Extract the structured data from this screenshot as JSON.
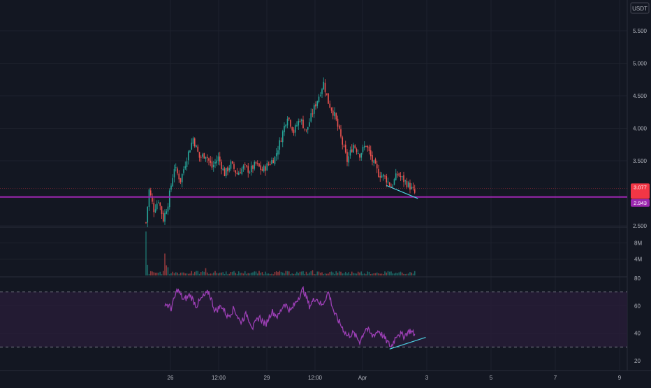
{
  "colors": {
    "background": "#131722",
    "grid": "#1e222d",
    "axis_text": "#b2b5be",
    "up": "#26a69a",
    "down": "#ef5350",
    "support_line": "#9c27b0",
    "rsi_line": "#9c3fb5",
    "rsi_band": "#2a1e3a",
    "trendline": "#4dd0e1",
    "price_tag": "#f23645",
    "support_tag": "#9c27b0"
  },
  "currency": "USDT",
  "price_scale": {
    "ticks": [
      "5.500",
      "5.000",
      "4.500",
      "4.000",
      "3.500",
      "2.500"
    ],
    "current_price_tag": "3.077",
    "support_price_tag": "2.943"
  },
  "volume_scale": {
    "ticks": [
      "8M",
      "4M"
    ]
  },
  "rsi_scale": {
    "ticks": [
      "80",
      "60",
      "40",
      "20"
    ]
  },
  "time_axis": {
    "ticks": [
      "26",
      "12:00",
      "29",
      "12:00",
      "Apr",
      "3",
      "5",
      "7",
      "9"
    ]
  },
  "chart_data": [
    {
      "type": "candlestick",
      "panel": "price",
      "ylim": [
        2.5,
        5.8
      ],
      "y_ticks": [
        5.5,
        5.0,
        4.5,
        4.0,
        3.5,
        2.5
      ],
      "x_tick_labels": [
        "26",
        "12:00",
        "29",
        "12:00",
        "Apr",
        "3",
        "5",
        "7",
        "9"
      ],
      "grid": true,
      "anchors": [
        [
          0,
          2.55
        ],
        [
          2,
          3.05
        ],
        [
          5,
          2.75
        ],
        [
          8,
          2.9
        ],
        [
          11,
          2.6
        ],
        [
          14,
          2.85
        ],
        [
          18,
          3.4
        ],
        [
          22,
          3.2
        ],
        [
          26,
          3.55
        ],
        [
          30,
          3.85
        ],
        [
          34,
          3.55
        ],
        [
          38,
          3.6
        ],
        [
          42,
          3.4
        ],
        [
          46,
          3.55
        ],
        [
          50,
          3.3
        ],
        [
          54,
          3.45
        ],
        [
          58,
          3.3
        ],
        [
          62,
          3.4
        ],
        [
          66,
          3.35
        ],
        [
          70,
          3.45
        ],
        [
          74,
          3.35
        ],
        [
          78,
          3.45
        ],
        [
          82,
          3.55
        ],
        [
          86,
          3.85
        ],
        [
          90,
          4.2
        ],
        [
          94,
          3.95
        ],
        [
          98,
          4.15
        ],
        [
          102,
          3.95
        ],
        [
          106,
          4.25
        ],
        [
          110,
          4.5
        ],
        [
          113,
          4.7
        ],
        [
          116,
          4.4
        ],
        [
          120,
          4.2
        ],
        [
          124,
          3.85
        ],
        [
          128,
          3.5
        ],
        [
          132,
          3.75
        ],
        [
          136,
          3.6
        ],
        [
          140,
          3.75
        ],
        [
          144,
          3.5
        ],
        [
          148,
          3.3
        ],
        [
          152,
          3.25
        ],
        [
          156,
          3.1
        ],
        [
          160,
          3.3
        ],
        [
          164,
          3.2
        ],
        [
          168,
          3.1
        ],
        [
          171,
          3.0
        ]
      ],
      "series": [
        {
          "name": "",
          "kind": "horizontal-line",
          "y": 2.943
        },
        {
          "name": "",
          "kind": "trendline",
          "points": [
            [
              153,
              3.12
            ],
            [
              173,
              2.92
            ]
          ]
        }
      ]
    },
    {
      "type": "bar",
      "panel": "volume",
      "ylim": [
        0,
        11000000
      ],
      "y_ticks": [
        8000000,
        4000000
      ],
      "spikes": [
        [
          0,
          10800000
        ],
        [
          1,
          2600000
        ],
        [
          12,
          5400000
        ],
        [
          13,
          2500000
        ],
        [
          14,
          2000000
        ],
        [
          38,
          1800000
        ],
        [
          106,
          1300000
        ]
      ],
      "base_level": 700000
    },
    {
      "type": "line",
      "panel": "rsi",
      "ylim": [
        15,
        85
      ],
      "y_ticks": [
        80,
        60,
        40,
        20
      ],
      "overbought": 70,
      "oversold": 30,
      "anchors": [
        [
          12,
          62
        ],
        [
          16,
          58
        ],
        [
          20,
          72
        ],
        [
          24,
          64
        ],
        [
          28,
          68
        ],
        [
          32,
          60
        ],
        [
          36,
          66
        ],
        [
          40,
          70
        ],
        [
          44,
          56
        ],
        [
          48,
          60
        ],
        [
          52,
          52
        ],
        [
          56,
          58
        ],
        [
          60,
          48
        ],
        [
          64,
          54
        ],
        [
          68,
          44
        ],
        [
          72,
          52
        ],
        [
          76,
          46
        ],
        [
          80,
          56
        ],
        [
          84,
          52
        ],
        [
          88,
          62
        ],
        [
          92,
          56
        ],
        [
          96,
          64
        ],
        [
          100,
          72
        ],
        [
          104,
          60
        ],
        [
          108,
          66
        ],
        [
          112,
          60
        ],
        [
          116,
          70
        ],
        [
          120,
          54
        ],
        [
          124,
          46
        ],
        [
          128,
          38
        ],
        [
          132,
          40
        ],
        [
          136,
          34
        ],
        [
          140,
          44
        ],
        [
          144,
          38
        ],
        [
          148,
          42
        ],
        [
          152,
          36
        ],
        [
          156,
          30
        ],
        [
          160,
          40
        ],
        [
          164,
          38
        ],
        [
          168,
          42
        ],
        [
          171,
          39
        ]
      ],
      "series": [
        {
          "name": "",
          "kind": "trendline",
          "points": [
            [
              155,
              28.5
            ],
            [
              178,
              37
            ]
          ]
        }
      ]
    }
  ]
}
